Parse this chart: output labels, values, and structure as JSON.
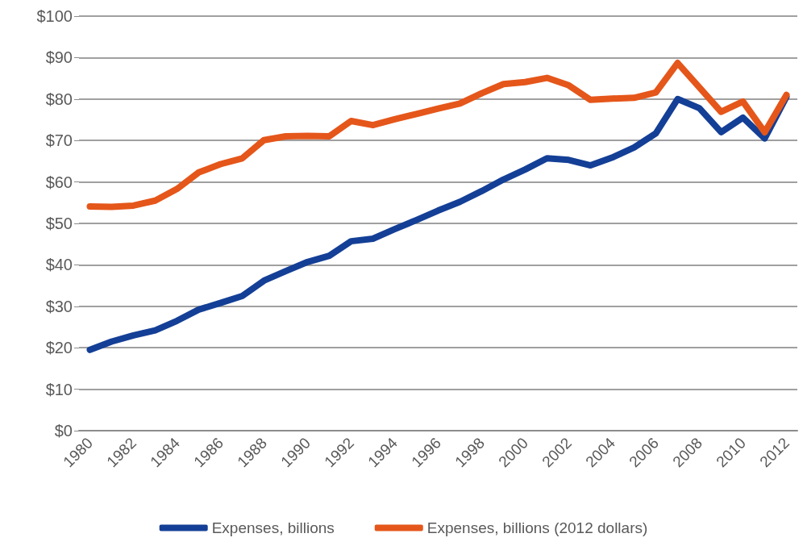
{
  "chart_data": {
    "type": "line",
    "categories": [
      "1980",
      null,
      "1982",
      null,
      "1984",
      null,
      "1986",
      null,
      "1988",
      null,
      "1990",
      null,
      "1992",
      null,
      "1994",
      null,
      "1996",
      null,
      "1998",
      null,
      "2000",
      null,
      "2002",
      null,
      "2004",
      null,
      "2006",
      null,
      "2008",
      null,
      "2010",
      null,
      "2012"
    ],
    "series": [
      {
        "name": "Expenses, billions",
        "color": "#143f96",
        "values": [
          19.5,
          21.5,
          23,
          24.2,
          26.5,
          29.2,
          30.8,
          32.5,
          36.2,
          38.5,
          40.7,
          42.2,
          45.7,
          46.3,
          48.6,
          50.8,
          53.1,
          55.2,
          57.8,
          60.6,
          63,
          65.7,
          65.3,
          64,
          65.9,
          68.3,
          71.7,
          80,
          77.8,
          72,
          75.5,
          70.5,
          80.5
        ]
      },
      {
        "name": "Expenses, billions (2012 dollars)",
        "color": "#e5561a",
        "values": [
          54.1,
          54,
          54.3,
          55.5,
          58.3,
          62.3,
          64.3,
          65.7,
          70.1,
          71,
          71.1,
          71,
          74.7,
          73.7,
          75.1,
          76.4,
          77.7,
          78.9,
          81.4,
          83.6,
          84.1,
          85.1,
          83.3,
          79.8,
          80.1,
          80.3,
          81.6,
          88.7,
          82.8,
          76.9,
          79.4,
          72,
          81
        ]
      }
    ],
    "ylim": [
      0,
      100
    ],
    "yticks": [
      {
        "value": 0,
        "label": "$0"
      },
      {
        "value": 10,
        "label": "$10"
      },
      {
        "value": 20,
        "label": "$20"
      },
      {
        "value": 30,
        "label": "$30"
      },
      {
        "value": 40,
        "label": "$40"
      },
      {
        "value": 50,
        "label": "$50"
      },
      {
        "value": 60,
        "label": "$60"
      },
      {
        "value": 70,
        "label": "$70"
      },
      {
        "value": 80,
        "label": "$80"
      },
      {
        "value": 90,
        "label": "$90"
      },
      {
        "value": 100,
        "label": "$100"
      }
    ],
    "grid": "y",
    "legend": "bottom",
    "marker": "none",
    "line_style": "solid"
  }
}
